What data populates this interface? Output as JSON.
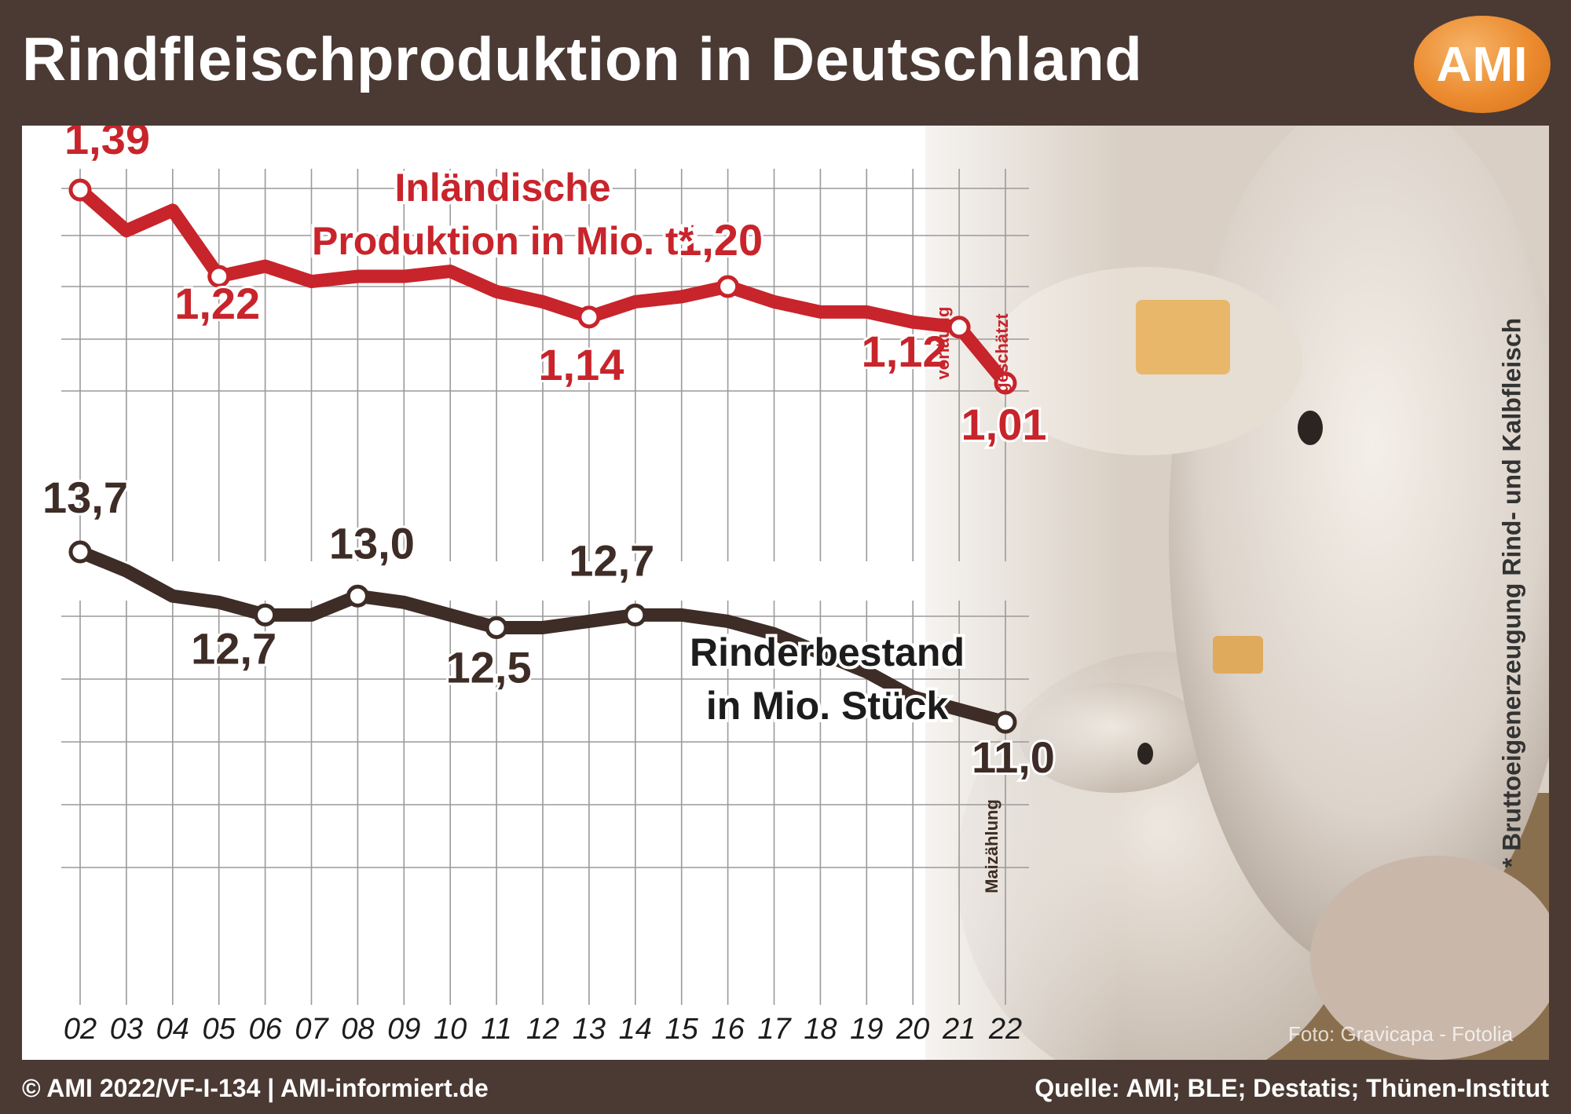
{
  "header": {
    "title": "Rindfleischproduktion in Deutschland",
    "logo_text": "AMI"
  },
  "footnote": "* Bruttoeigenerzeugung Rind- und Kalbfleisch",
  "footer": {
    "left": "© AMI 2022/VF-I-134 | AMI-informiert.de",
    "right": "Quelle: AMI; BLE; Destatis; Thünen-Institut"
  },
  "photo_credit": "Foto: Gravicapa - Fotolia",
  "colors": {
    "background": "#4a3a33",
    "production_line": "#c8242b",
    "herd_line": "#3e2c26",
    "grid": "#9a9a9a",
    "logo": "#eb8a2e"
  },
  "chart_data": [
    {
      "type": "line",
      "title_lines": [
        "Inländische",
        "Produktion in Mio. t*"
      ],
      "x": [
        "02",
        "03",
        "04",
        "05",
        "06",
        "07",
        "08",
        "09",
        "10",
        "11",
        "12",
        "13",
        "14",
        "15",
        "16",
        "17",
        "18",
        "19",
        "20",
        "21",
        "22"
      ],
      "values": [
        1.39,
        1.31,
        1.35,
        1.22,
        1.24,
        1.21,
        1.22,
        1.22,
        1.23,
        1.19,
        1.17,
        1.14,
        1.17,
        1.18,
        1.2,
        1.17,
        1.15,
        1.15,
        1.13,
        1.12,
        1.01
      ],
      "labeled_points": [
        {
          "x": "02",
          "label": "1,39"
        },
        {
          "x": "05",
          "label": "1,22"
        },
        {
          "x": "13",
          "label": "1,14"
        },
        {
          "x": "16",
          "label": "1,20"
        },
        {
          "x": "21",
          "label": "1,12"
        },
        {
          "x": "22",
          "label": "1,01"
        }
      ],
      "annotations": [
        {
          "x": "21",
          "text": "vorläufig"
        },
        {
          "x": "22",
          "text": "geschätzt"
        }
      ],
      "color": "#c8242b"
    },
    {
      "type": "line",
      "title_lines": [
        "Rinderbestand",
        "in Mio. Stück"
      ],
      "x": [
        "02",
        "03",
        "04",
        "05",
        "06",
        "07",
        "08",
        "09",
        "10",
        "11",
        "12",
        "13",
        "14",
        "15",
        "16",
        "17",
        "18",
        "19",
        "20",
        "21",
        "22"
      ],
      "values": [
        13.7,
        13.4,
        13.0,
        12.9,
        12.7,
        12.7,
        13.0,
        12.9,
        12.7,
        12.5,
        12.5,
        12.6,
        12.7,
        12.7,
        12.6,
        12.4,
        12.1,
        11.8,
        11.4,
        11.2,
        11.0
      ],
      "labeled_points": [
        {
          "x": "02",
          "label": "13,7"
        },
        {
          "x": "06",
          "label": "12,7"
        },
        {
          "x": "08",
          "label": "13,0"
        },
        {
          "x": "11",
          "label": "12,5"
        },
        {
          "x": "14",
          "label": "12,7"
        },
        {
          "x": "22",
          "label": "11,0"
        }
      ],
      "annotations": [
        {
          "x": "22",
          "text": "Maizählung"
        }
      ],
      "color": "#3e2c26"
    }
  ]
}
